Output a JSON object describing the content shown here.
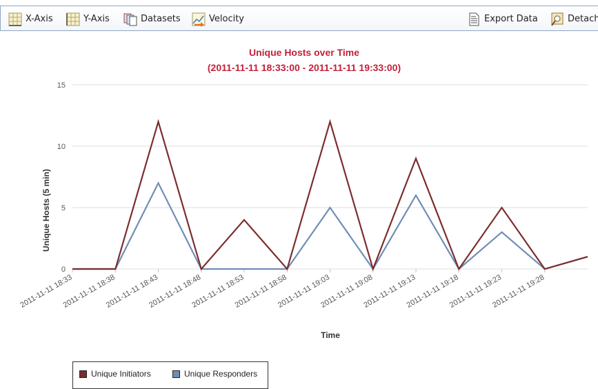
{
  "toolbar": {
    "x_axis_label": "X-Axis",
    "y_axis_label": "Y-Axis",
    "datasets_label": "Datasets",
    "velocity_label": "Velocity",
    "export_label": "Export Data",
    "detach_label": "Detach"
  },
  "chart_data": {
    "type": "line",
    "title": "Unique Hosts over Time",
    "subtitle": "(2011-11-11 18:33:00 - 2011-11-11 19:33:00)",
    "xlabel": "Time",
    "ylabel": "Unique Hosts (5 min)",
    "ylim": [
      0,
      15
    ],
    "yticks": [
      0,
      5,
      10,
      15
    ],
    "grid": true,
    "legend_position": "bottom-left",
    "x": [
      "2011-11-11 18:33",
      "2011-11-11 18:38",
      "2011-11-11 18:43",
      "2011-11-11 18:48",
      "2011-11-11 18:53",
      "2011-11-11 18:58",
      "2011-11-11 19:03",
      "2011-11-11 19:08",
      "2011-11-11 19:13",
      "2011-11-11 19:18",
      "2011-11-11 19:23",
      "2011-11-11 19:28",
      "2011-11-11 19:33"
    ],
    "xtick_labels": [
      "2011-11-11 18:33",
      "2011-11-11 18:38",
      "2011-11-11 18:43",
      "2011-11-11 18:48",
      "2011-11-11 18:53",
      "2011-11-11 18:58",
      "2011-11-11 19:03",
      "2011-11-11 19:08",
      "2011-11-11 19:13",
      "2011-11-11 19:18",
      "2011-11-11 19:23",
      "2011-11-11 19:28"
    ],
    "series": [
      {
        "name": "Unique Initiators",
        "color": "#7b2d2d",
        "values": [
          0,
          0,
          12,
          0,
          4,
          0,
          12,
          0,
          9,
          0,
          5,
          0,
          1
        ]
      },
      {
        "name": "Unique Responders",
        "color": "#6f8db5",
        "values": [
          0,
          0,
          7,
          0,
          0,
          0,
          5,
          0,
          6,
          0,
          3,
          0,
          1
        ]
      }
    ],
    "colors": {
      "title": "#c41f3a",
      "grid": "#dddddd",
      "text": "#555555"
    }
  }
}
